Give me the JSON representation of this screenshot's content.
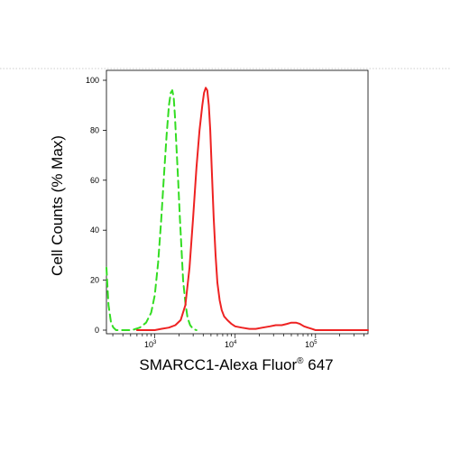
{
  "chart_data": {
    "type": "line",
    "xlabel": "SMARCC1-Alexa Fluor",
    "xlabel_superscript": "®",
    "xlabel_suffix": " 647",
    "ylabel": "Cell Counts (% Max)",
    "x_scale": "log",
    "xlim": [
      250,
      450000
    ],
    "ylim": [
      0,
      100
    ],
    "y_ticks": [
      {
        "value": 0,
        "label": "0"
      },
      {
        "value": 20,
        "label": "20"
      },
      {
        "value": 40,
        "label": "40"
      },
      {
        "value": 60,
        "label": "60"
      },
      {
        "value": 80,
        "label": "80"
      },
      {
        "value": 100,
        "label": "100"
      }
    ],
    "x_ticks": [
      {
        "value": 1000,
        "base": "10",
        "exp": "3"
      },
      {
        "value": 10000,
        "base": "10",
        "exp": "4"
      },
      {
        "value": 100000,
        "base": "10",
        "exp": "5"
      }
    ],
    "grid": false,
    "series": [
      {
        "color": "#33dd22",
        "style": "dashed",
        "x": [
          250,
          265,
          285,
          305,
          330,
          370,
          430,
          520,
          650,
          780,
          900,
          1000,
          1100,
          1200,
          1300,
          1400,
          1500,
          1580,
          1650,
          1720,
          1780,
          1850,
          1950,
          2050,
          2150,
          2250,
          2400,
          2550,
          2750,
          3000,
          3300
        ],
        "y": [
          25,
          10,
          3,
          1,
          0,
          0,
          0,
          0,
          1,
          3,
          7,
          14,
          27,
          44,
          62,
          78,
          90,
          95,
          96,
          93,
          86,
          75,
          60,
          45,
          32,
          20,
          11,
          5,
          2,
          0.5,
          0
        ]
      },
      {
        "color": "#ee2222",
        "style": "solid",
        "x": [
          600,
          800,
          1000,
          1200,
          1500,
          1800,
          2100,
          2400,
          2700,
          3000,
          3300,
          3600,
          3900,
          4100,
          4300,
          4500,
          4700,
          4900,
          5100,
          5400,
          5700,
          6000,
          6400,
          6800,
          7300,
          8000,
          9000,
          10000,
          12000,
          15000,
          18000,
          22000,
          27000,
          32000,
          38000,
          44000,
          50000,
          57000,
          64000,
          72000,
          80000,
          90000,
          100000,
          120000,
          150000,
          200000,
          300000,
          450000
        ],
        "y": [
          0,
          0,
          0,
          0.5,
          1,
          2,
          4,
          10,
          25,
          45,
          65,
          80,
          90,
          95,
          97,
          96,
          90,
          80,
          65,
          45,
          30,
          19,
          12,
          8,
          5.5,
          4,
          2.5,
          1.5,
          1,
          0.5,
          0.5,
          1,
          1.5,
          2,
          2,
          2.5,
          3,
          3,
          2.5,
          1.5,
          1,
          0.5,
          0,
          0,
          0,
          0,
          0,
          0
        ]
      }
    ]
  }
}
